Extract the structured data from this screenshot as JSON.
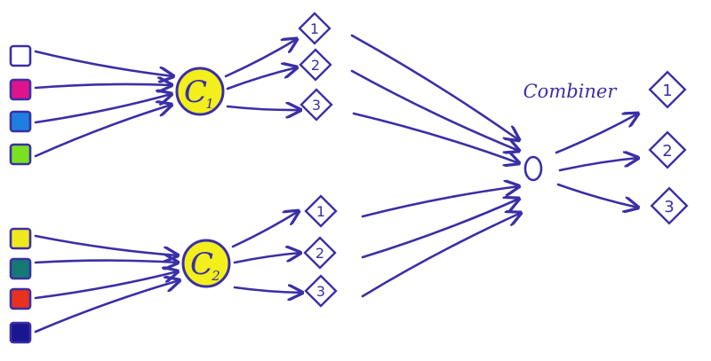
{
  "colors": {
    "ink": "#3a2fa6",
    "classifier_fill": "#f2ef1c"
  },
  "groups": [
    {
      "inputs": [
        {
          "fill": "#ffffff"
        },
        {
          "fill": "#e0148a"
        },
        {
          "fill": "#1f7fe0"
        },
        {
          "fill": "#7be020"
        }
      ],
      "classifier": {
        "main": "C",
        "sub": "1"
      },
      "outputs": [
        "1",
        "2",
        "3"
      ]
    },
    {
      "inputs": [
        {
          "fill": "#efe81c"
        },
        {
          "fill": "#157a73"
        },
        {
          "fill": "#e8321e"
        },
        {
          "fill": "#1a168f"
        }
      ],
      "classifier": {
        "main": "C",
        "sub": "2"
      },
      "outputs": [
        "1",
        "2",
        "3"
      ]
    }
  ],
  "combiner": {
    "label": "Combiner",
    "outputs": [
      "1",
      "2",
      "3"
    ]
  }
}
